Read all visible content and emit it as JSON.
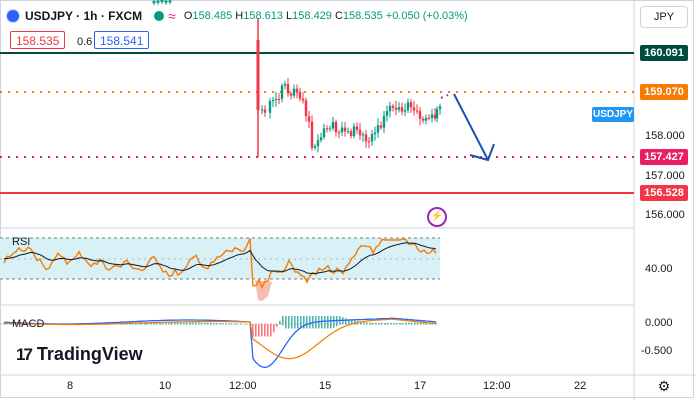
{
  "header": {
    "symbol": "USDJPY",
    "interval": "1h",
    "exchange": "FXCM",
    "open_label": "O",
    "open": "158.485",
    "high_label": "H",
    "high": "158.613",
    "low_label": "L",
    "low": "158.429",
    "close_label": "C",
    "close": "158.535",
    "change": "+0.050 (+0.03%)"
  },
  "trade": {
    "sell_price": "158.535",
    "spread": "0.6",
    "buy_price": "158.541"
  },
  "currency_selector": "JPY",
  "symbol_tag": "USDJPY",
  "price_levels": [
    {
      "value": "160.091",
      "color": "#004d40",
      "style": "solid"
    },
    {
      "value": "159.070",
      "color": "#f57c00",
      "style": "dotted"
    },
    {
      "value": "157.427",
      "color": "#e91e63",
      "style": "dotted"
    },
    {
      "value": "156.528",
      "color": "#f23645",
      "style": "solid"
    }
  ],
  "price_axis_ticks": [
    "158.000",
    "157.000",
    "156.000"
  ],
  "rsi": {
    "label": "RSI",
    "axis_tick": "40.00"
  },
  "macd": {
    "label": "MACD",
    "axis_ticks": [
      "0.000",
      "-0.500"
    ]
  },
  "time_axis": [
    "8",
    "10",
    "12:00",
    "15",
    "17",
    "12:00",
    "22"
  ],
  "brand": {
    "name": "TradingView",
    "mark": "17"
  },
  "icons": {
    "flag": "us-flag-icon",
    "status": "market-open-dot-icon",
    "wave": "wave-icon",
    "bolt": "lightning-icon",
    "settings": "gear-icon"
  },
  "colors": {
    "up": "#089981",
    "down": "#f23645",
    "accent": "#2962ff",
    "rsi_band": "#d7f1f7",
    "arrow": "#1e4fb5"
  }
}
